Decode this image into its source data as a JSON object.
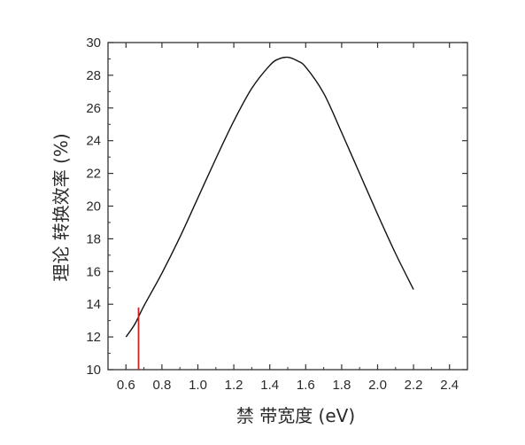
{
  "chart_data": {
    "type": "line",
    "title": "",
    "xlabel": "禁 带宽度 (eV)",
    "ylabel": "理论 转换效率 (%)",
    "xlim": [
      0.5,
      2.5
    ],
    "ylim": [
      10,
      30
    ],
    "xticks": [
      "0.6",
      "0.8",
      "1.0",
      "1.2",
      "1.4",
      "1.6",
      "1.8",
      "2.0",
      "2.2",
      "2.4"
    ],
    "yticks": [
      "10",
      "12",
      "14",
      "16",
      "18",
      "20",
      "22",
      "24",
      "26",
      "28",
      "30"
    ],
    "grid": false,
    "legend": "none",
    "series": [
      {
        "x": [
          0.6,
          0.65,
          0.7,
          0.8,
          0.9,
          1.0,
          1.1,
          1.2,
          1.3,
          1.4,
          1.45,
          1.5,
          1.55,
          1.6,
          1.7,
          1.8,
          1.9,
          2.0,
          2.1,
          2.2
        ],
        "y": [
          12.0,
          12.8,
          13.9,
          15.9,
          18.1,
          20.5,
          22.9,
          25.2,
          27.2,
          28.6,
          29.0,
          29.1,
          28.9,
          28.5,
          26.9,
          24.5,
          22.0,
          19.5,
          17.1,
          14.9
        ],
        "color": "#111111"
      }
    ],
    "marker": {
      "x": 0.67,
      "y": 13.8,
      "color": "#cc2222"
    }
  }
}
